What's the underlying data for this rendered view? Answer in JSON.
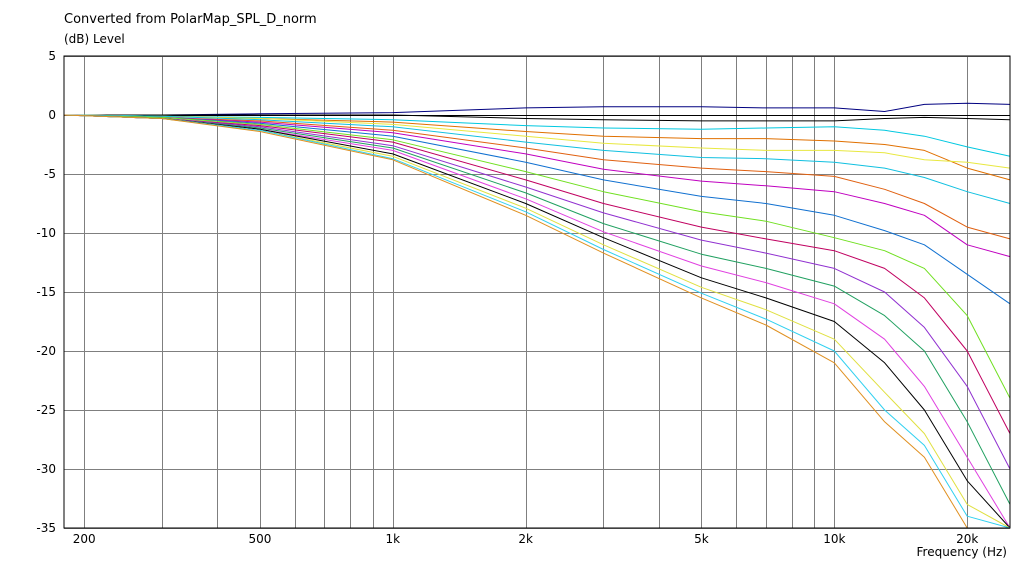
{
  "header": {
    "title": "Converted from PolarMap_SPL_D_norm",
    "ylabel": "(dB)  Level",
    "xlabel": "Frequency  (Hz)"
  },
  "colors": {
    "background": "#ffffff",
    "grid": "#7f7f7f",
    "axis": "#000000",
    "series_palette": [
      "#000080",
      "#000000",
      "#00c8e0",
      "#e07000",
      "#e8e840",
      "#10c0e0",
      "#e06010",
      "#c000c0",
      "#1070d0",
      "#70e020",
      "#c00060",
      "#9030d0",
      "#20a060",
      "#e040e0",
      "#000000",
      "#e0e040",
      "#30d0f0",
      "#e09020"
    ]
  },
  "chart_data": {
    "type": "line",
    "title": "Converted from PolarMap_SPL_D_norm",
    "xlabel": "Frequency  (Hz)",
    "ylabel": "(dB)  Level",
    "xscale": "log",
    "xlim": [
      180,
      25000
    ],
    "ylim": [
      -35,
      5
    ],
    "grid": true,
    "legend": "none",
    "x_ticks": [
      {
        "value": 200,
        "label": "200"
      },
      {
        "value": 500,
        "label": "500"
      },
      {
        "value": 1000,
        "label": "1k"
      },
      {
        "value": 2000,
        "label": "2k"
      },
      {
        "value": 5000,
        "label": "5k"
      },
      {
        "value": 10000,
        "label": "10k"
      },
      {
        "value": 20000,
        "label": "20k"
      }
    ],
    "y_ticks": [
      {
        "value": 5,
        "label": "5"
      },
      {
        "value": 0,
        "label": "0"
      },
      {
        "value": -5,
        "label": "-5"
      },
      {
        "value": -10,
        "label": "-10"
      },
      {
        "value": -15,
        "label": "-15"
      },
      {
        "value": -20,
        "label": "-20"
      },
      {
        "value": -25,
        "label": "-25"
      },
      {
        "value": -30,
        "label": "-30"
      },
      {
        "value": -35,
        "label": "-35"
      }
    ],
    "x": [
      180,
      300,
      500,
      1000,
      2000,
      3000,
      5000,
      7000,
      10000,
      13000,
      16000,
      20000,
      25000
    ],
    "series": [
      {
        "values": [
          0,
          0,
          0.1,
          0.2,
          0.6,
          0.7,
          0.7,
          0.6,
          0.6,
          0.3,
          0.9,
          1.0,
          0.9
        ]
      },
      {
        "values": [
          0,
          0,
          0,
          0,
          -0.3,
          -0.4,
          -0.5,
          -0.5,
          -0.5,
          -0.3,
          -0.2,
          -0.3,
          -0.4
        ]
      },
      {
        "values": [
          0,
          -0.1,
          -0.2,
          -0.4,
          -0.9,
          -1.1,
          -1.2,
          -1.1,
          -1.0,
          -1.3,
          -1.8,
          -2.7,
          -3.5
        ]
      },
      {
        "values": [
          0,
          -0.1,
          -0.3,
          -0.6,
          -1.4,
          -1.8,
          -2.0,
          -2.0,
          -2.2,
          -2.5,
          -3.0,
          -4.5,
          -5.5
        ]
      },
      {
        "values": [
          0,
          -0.1,
          -0.3,
          -0.8,
          -1.8,
          -2.4,
          -2.8,
          -3.0,
          -3.0,
          -3.2,
          -3.8,
          -4.0,
          -4.5
        ]
      },
      {
        "values": [
          0,
          -0.1,
          -0.4,
          -1.0,
          -2.3,
          -3.0,
          -3.6,
          -3.7,
          -4.0,
          -4.5,
          -5.3,
          -6.5,
          -7.5
        ]
      },
      {
        "values": [
          0,
          -0.2,
          -0.5,
          -1.3,
          -2.8,
          -3.8,
          -4.5,
          -4.8,
          -5.2,
          -6.3,
          -7.5,
          -9.5,
          -10.5
        ]
      },
      {
        "values": [
          0,
          -0.2,
          -0.6,
          -1.5,
          -3.3,
          -4.6,
          -5.6,
          -6.0,
          -6.5,
          -7.5,
          -8.5,
          -11.0,
          -12.0
        ]
      },
      {
        "values": [
          0,
          -0.2,
          -0.7,
          -1.8,
          -4.0,
          -5.5,
          -6.9,
          -7.5,
          -8.5,
          -9.8,
          -11.0,
          -13.5,
          -16.0
        ]
      },
      {
        "values": [
          0,
          -0.2,
          -0.8,
          -2.1,
          -4.8,
          -6.5,
          -8.2,
          -9.0,
          -10.4,
          -11.5,
          -13.0,
          -17.0,
          -24.0
        ]
      },
      {
        "values": [
          0,
          -0.3,
          -0.9,
          -2.3,
          -5.5,
          -7.5,
          -9.5,
          -10.5,
          -11.5,
          -13.0,
          -15.5,
          -20.0,
          -27.0
        ]
      },
      {
        "values": [
          0,
          -0.3,
          -1.0,
          -2.6,
          -6.1,
          -8.3,
          -10.6,
          -11.7,
          -13.0,
          -15.0,
          -18.0,
          -23.0,
          -30.0
        ]
      },
      {
        "values": [
          0,
          -0.3,
          -1.1,
          -2.8,
          -6.6,
          -9.2,
          -11.8,
          -13.0,
          -14.5,
          -17.0,
          -20.0,
          -26.0,
          -33.0
        ]
      },
      {
        "values": [
          0,
          -0.3,
          -1.2,
          -3.0,
          -7.1,
          -9.9,
          -12.8,
          -14.2,
          -16.0,
          -19.0,
          -23.0,
          -29.0,
          -35.0
        ]
      },
      {
        "values": [
          0,
          -0.3,
          -1.2,
          -3.3,
          -7.5,
          -10.4,
          -13.8,
          -15.5,
          -17.5,
          -21.0,
          -25.0,
          -31.0,
          -35.0
        ]
      },
      {
        "values": [
          0,
          -0.3,
          -1.3,
          -3.5,
          -7.9,
          -11.0,
          -14.6,
          -16.5,
          -19.0,
          -23.5,
          -27.0,
          -33.0,
          -35.0
        ]
      },
      {
        "values": [
          0,
          -0.3,
          -1.3,
          -3.7,
          -8.2,
          -11.4,
          -15.1,
          -17.3,
          -20.0,
          -25.0,
          -28.0,
          -34.0,
          -35.0
        ]
      },
      {
        "values": [
          0,
          -0.3,
          -1.4,
          -3.8,
          -8.5,
          -11.7,
          -15.5,
          -17.8,
          -21.0,
          -26.0,
          -29.0,
          -35.0,
          -35.0
        ]
      }
    ]
  }
}
